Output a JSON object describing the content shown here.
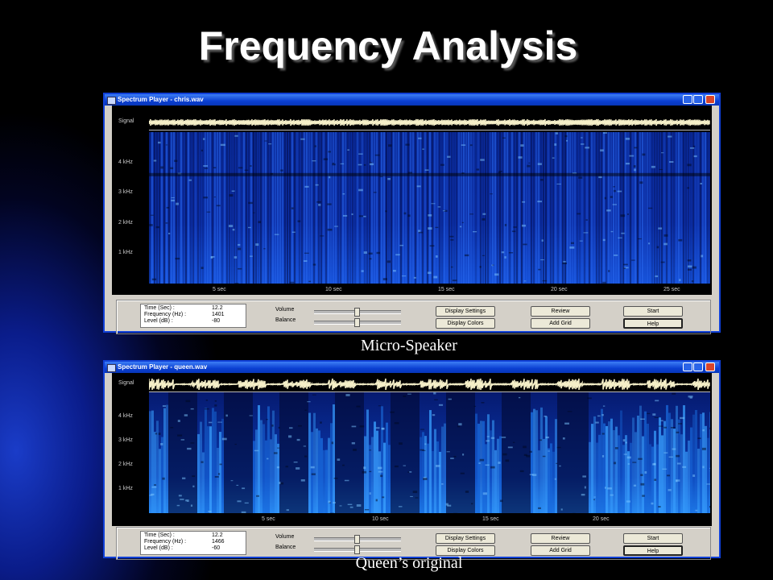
{
  "title": "Frequency Analysis",
  "windows": [
    {
      "title": "Spectrum Player - chris.wav",
      "caption": "Micro-Speaker",
      "signal_label": "Signal",
      "freq_labels": [
        "4 kHz",
        "3 kHz",
        "2 kHz",
        "1 kHz"
      ],
      "time_labels": [
        "5 sec",
        "10 sec",
        "15 sec",
        "20 sec",
        "25 sec"
      ],
      "info": [
        {
          "label": "Time (Sec) :",
          "value": "12.2"
        },
        {
          "label": "Frequency (Hz) :",
          "value": "1401"
        },
        {
          "label": "Level (dB) :",
          "value": "-80"
        }
      ],
      "sliders": [
        "Volume",
        "Balance"
      ],
      "buttons": [
        "Display Settings",
        "Display Colors",
        "Review",
        "Add Grid",
        "Start",
        "Help"
      ]
    },
    {
      "title": "Spectrum Player - queen.wav",
      "caption": "Queen’s original",
      "signal_label": "Signal",
      "freq_labels": [
        "4 kHz",
        "3 kHz",
        "2 kHz",
        "1 kHz"
      ],
      "time_labels": [
        "5 sec",
        "10 sec",
        "15 sec",
        "20 sec"
      ],
      "info": [
        {
          "label": "Time (Sec) :",
          "value": "12.2"
        },
        {
          "label": "Frequency (Hz) :",
          "value": "1466"
        },
        {
          "label": "Level (dB) :",
          "value": "-60"
        }
      ],
      "sliders": [
        "Volume",
        "Balance"
      ],
      "buttons": [
        "Display Settings",
        "Display Colors",
        "Review",
        "Add Grid",
        "Start",
        "Help"
      ]
    }
  ]
}
